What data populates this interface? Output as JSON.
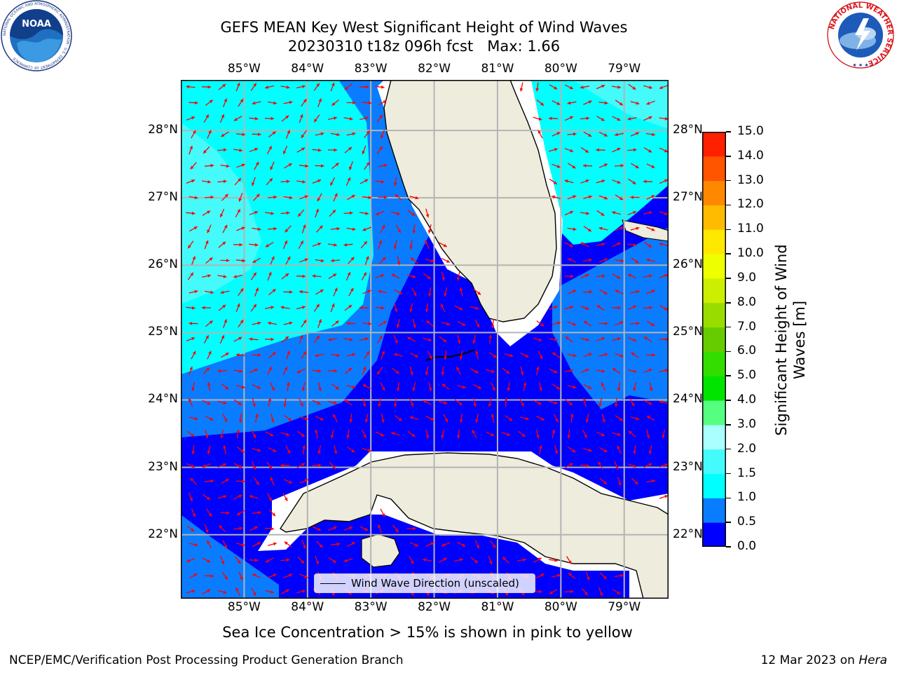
{
  "title": {
    "line1": "GEFS MEAN Key West Significant Height of Wind Waves",
    "line2": "20230310 t18z 096h fcst   Max: 1.66"
  },
  "logos": {
    "left": "NOAA",
    "left_ring_text": "NATIONAL OCEANIC AND ATMOSPHERIC ADMINISTRATION · U.S. DEPARTMENT OF COMMERCE",
    "right_ring_text": "NATIONAL WEATHER SERVICE"
  },
  "map": {
    "lon_labels": [
      "85°W",
      "84°W",
      "83°W",
      "82°W",
      "81°W",
      "80°W",
      "79°W"
    ],
    "lat_labels": [
      "28°N",
      "27°N",
      "26°N",
      "25°N",
      "24°N",
      "23°N",
      "22°N"
    ],
    "extent": {
      "lon": [
        -86.0,
        -78.3
      ],
      "lat": [
        21.05,
        28.75
      ]
    },
    "colors": {
      "land": "#eeecdc",
      "arrow": "#ff0000",
      "grid": "#b4b4b4",
      "ice_fill": "#ffffff",
      "band_0_0.5": "#0000ff",
      "band_0.5_1.0": "#0a7cff",
      "band_1.0_1.5": "#00ffff",
      "band_1.5_2.0": "#44fafa"
    },
    "legend_label": "Wind Wave Direction (unscaled)"
  },
  "colorbar": {
    "label_line1": "Significant Height of Wind",
    "label_line2": "Waves [m]",
    "ticks": [
      "0.0",
      "0.5",
      "1.0",
      "1.5",
      "2.0",
      "3.0",
      "4.0",
      "5.0",
      "6.0",
      "7.0",
      "8.0",
      "9.0",
      "10.0",
      "11.0",
      "12.0",
      "13.0",
      "14.0",
      "15.0"
    ],
    "colors": [
      "#0000ff",
      "#0a7cff",
      "#00ffff",
      "#44fafa",
      "#aaffff",
      "#55ff80",
      "#00e400",
      "#33dd00",
      "#66cc00",
      "#99dd00",
      "#ccee00",
      "#eeff00",
      "#ffe800",
      "#ffbb00",
      "#ff8800",
      "#ff5500",
      "#ff2000"
    ]
  },
  "footer": {
    "note": "Sea Ice Concentration > 15% is shown in pink to yellow",
    "left": "NCEP/EMC/Verification Post Processing Product Generation Branch",
    "right_prefix": "12 Mar 2023 on ",
    "right_host": "Hera"
  }
}
